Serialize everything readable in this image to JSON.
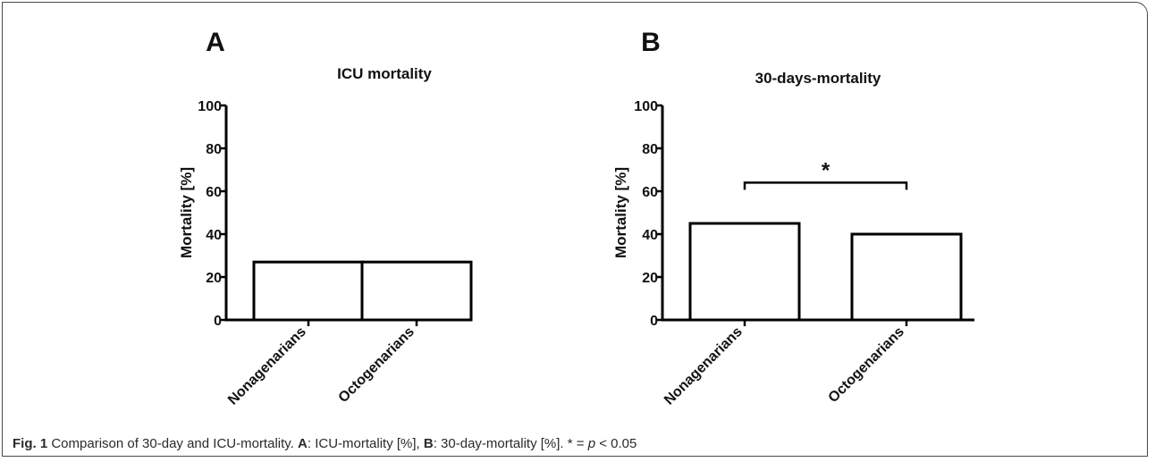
{
  "chart_data": [
    {
      "type": "bar",
      "panel_letter": "A",
      "title": "ICU mortality",
      "ylabel": "Mortality [%]",
      "xlabel": "",
      "categories": [
        "Nonagenarians",
        "Octogenarians"
      ],
      "values": [
        27,
        27
      ],
      "ylim": [
        0,
        100
      ],
      "yticks": [
        0,
        20,
        40,
        60,
        80,
        100
      ],
      "grid": false,
      "bar_fill": "#ffffff",
      "bar_stroke": "#000000",
      "significance": null
    },
    {
      "type": "bar",
      "panel_letter": "B",
      "title": "30-days-mortality",
      "ylabel": "Mortality [%]",
      "xlabel": "",
      "categories": [
        "Nonagenarians",
        "Octogenarians"
      ],
      "values": [
        45,
        40
      ],
      "ylim": [
        0,
        100
      ],
      "yticks": [
        0,
        20,
        40,
        60,
        80,
        100
      ],
      "grid": false,
      "bar_fill": "#ffffff",
      "bar_stroke": "#000000",
      "significance": {
        "label": "*",
        "between": [
          0,
          1
        ],
        "y": 64
      }
    }
  ],
  "caption": {
    "fig_label": "Fig. 1",
    "text_1": " Comparison of 30-day and ICU-mortality. ",
    "label_a": "A",
    "text_2": ": ICU-mortality [%], ",
    "label_b": "B",
    "text_3": ": 30-day-mortality [%]. * = ",
    "p_symbol": "p",
    "text_4": " < 0.05"
  }
}
